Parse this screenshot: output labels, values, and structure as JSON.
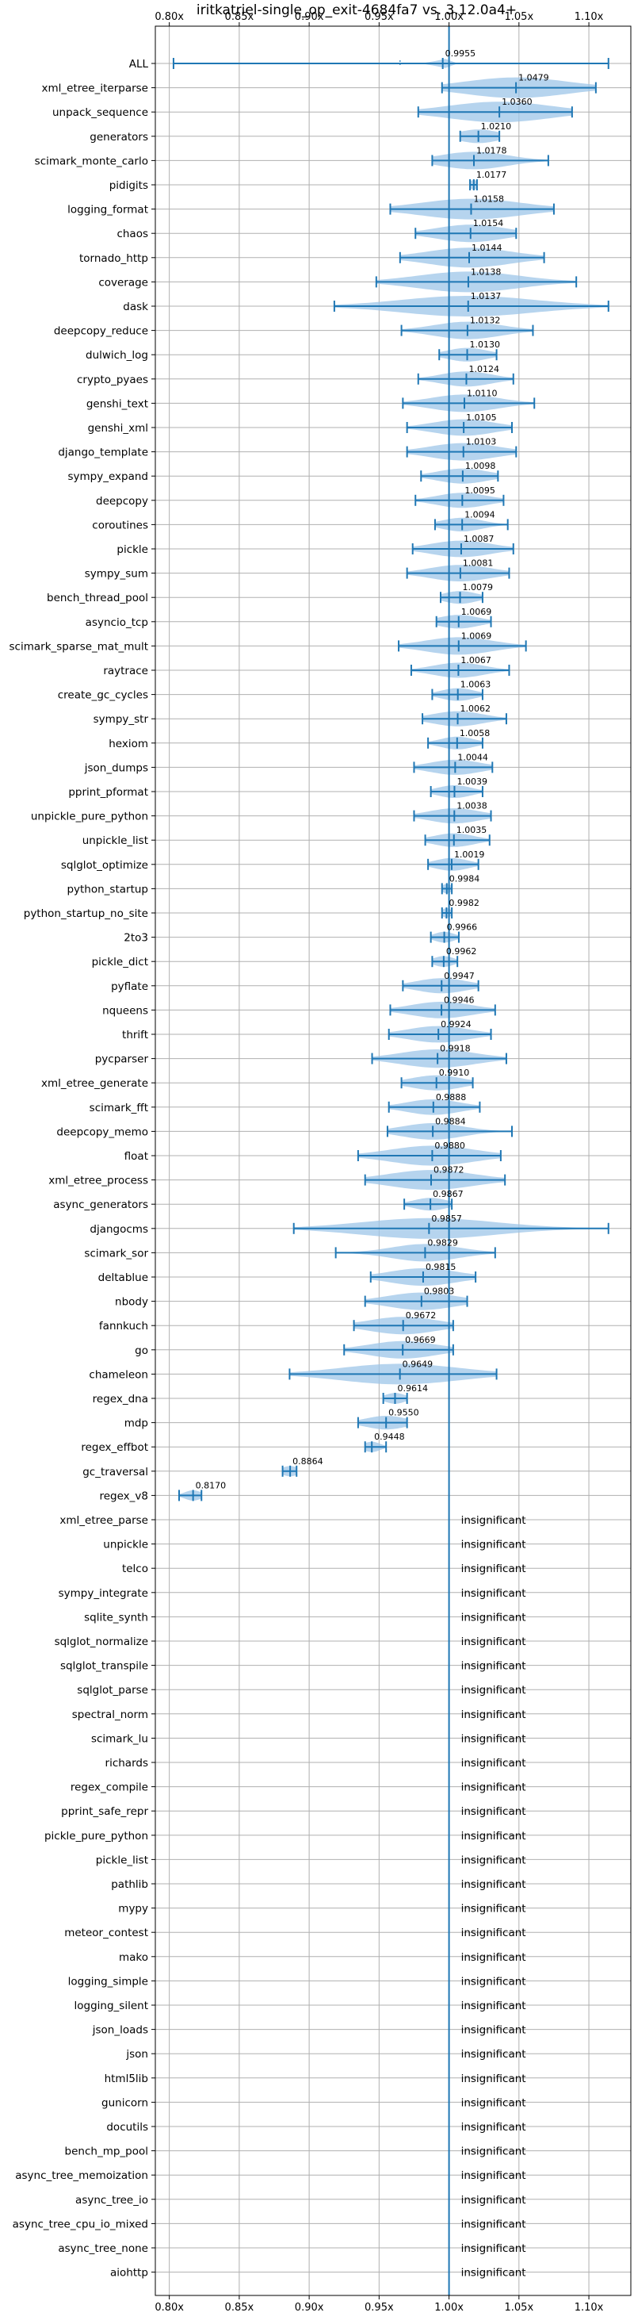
{
  "chart_data": {
    "type": "violin",
    "title": "iritkatriel-single_op_exit-4684fa7 vs. 3.12.0a4+",
    "xlim": [
      0.79,
      1.13
    ],
    "xticks": [
      {
        "value": 0.8,
        "label": "0.80x"
      },
      {
        "value": 0.85,
        "label": "0.85x"
      },
      {
        "value": 0.9,
        "label": "0.90x"
      },
      {
        "value": 0.95,
        "label": "0.95x"
      },
      {
        "value": 1.0,
        "label": "1.00x"
      },
      {
        "value": 1.05,
        "label": "1.05x"
      },
      {
        "value": 1.1,
        "label": "1.10x"
      }
    ],
    "reference_line": 1.0,
    "grid": true,
    "colors": {
      "violin": "#9ec5e8",
      "line": "#1f77b4",
      "grid": "#b0b0b0"
    },
    "insignificant_label": "insignificant",
    "benchmarks": [
      {
        "name": "ALL",
        "mean": 0.9955,
        "label": "0.9955",
        "min": 0.803,
        "max": 1.114,
        "spread": 0.004,
        "median": 0.965
      },
      {
        "name": "xml_etree_iterparse",
        "mean": 1.0479,
        "label": "1.0479",
        "min": 0.995,
        "max": 1.105,
        "spread": 0.03
      },
      {
        "name": "unpack_sequence",
        "mean": 1.036,
        "label": "1.0360",
        "min": 0.978,
        "max": 1.088,
        "spread": 0.03
      },
      {
        "name": "generators",
        "mean": 1.021,
        "label": "1.0210",
        "min": 1.008,
        "max": 1.036,
        "spread": 0.012
      },
      {
        "name": "scimark_monte_carlo",
        "mean": 1.0178,
        "label": "1.0178",
        "min": 0.988,
        "max": 1.071,
        "spread": 0.02
      },
      {
        "name": "pidigits",
        "mean": 1.0177,
        "label": "1.0177",
        "min": 1.015,
        "max": 1.02,
        "spread": 0.003
      },
      {
        "name": "logging_format",
        "mean": 1.0158,
        "label": "1.0158",
        "min": 0.958,
        "max": 1.075,
        "spread": 0.03
      },
      {
        "name": "chaos",
        "mean": 1.0154,
        "label": "1.0154",
        "min": 0.976,
        "max": 1.048,
        "spread": 0.02
      },
      {
        "name": "tornado_http",
        "mean": 1.0144,
        "label": "1.0144",
        "min": 0.965,
        "max": 1.068,
        "spread": 0.025
      },
      {
        "name": "coverage",
        "mean": 1.0138,
        "label": "1.0138",
        "min": 0.948,
        "max": 1.091,
        "spread": 0.03
      },
      {
        "name": "dask",
        "mean": 1.0137,
        "label": "1.0137",
        "min": 0.918,
        "max": 1.114,
        "spread": 0.04
      },
      {
        "name": "deepcopy_reduce",
        "mean": 1.0132,
        "label": "1.0132",
        "min": 0.966,
        "max": 1.06,
        "spread": 0.02
      },
      {
        "name": "dulwich_log",
        "mean": 1.013,
        "label": "1.0130",
        "min": 0.993,
        "max": 1.034,
        "spread": 0.012
      },
      {
        "name": "crypto_pyaes",
        "mean": 1.0124,
        "label": "1.0124",
        "min": 0.978,
        "max": 1.046,
        "spread": 0.015
      },
      {
        "name": "genshi_text",
        "mean": 1.011,
        "label": "1.0110",
        "min": 0.967,
        "max": 1.061,
        "spread": 0.02
      },
      {
        "name": "genshi_xml",
        "mean": 1.0105,
        "label": "1.0105",
        "min": 0.97,
        "max": 1.045,
        "spread": 0.018
      },
      {
        "name": "django_template",
        "mean": 1.0103,
        "label": "1.0103",
        "min": 0.97,
        "max": 1.048,
        "spread": 0.02
      },
      {
        "name": "sympy_expand",
        "mean": 1.0098,
        "label": "1.0098",
        "min": 0.98,
        "max": 1.035,
        "spread": 0.015
      },
      {
        "name": "deepcopy",
        "mean": 1.0095,
        "label": "1.0095",
        "min": 0.976,
        "max": 1.039,
        "spread": 0.015
      },
      {
        "name": "coroutines",
        "mean": 1.0094,
        "label": "1.0094",
        "min": 0.99,
        "max": 1.042,
        "spread": 0.012
      },
      {
        "name": "pickle",
        "mean": 1.0087,
        "label": "1.0087",
        "min": 0.974,
        "max": 1.046,
        "spread": 0.018
      },
      {
        "name": "sympy_sum",
        "mean": 1.0081,
        "label": "1.0081",
        "min": 0.97,
        "max": 1.043,
        "spread": 0.018
      },
      {
        "name": "bench_thread_pool",
        "mean": 1.0079,
        "label": "1.0079",
        "min": 0.994,
        "max": 1.024,
        "spread": 0.01
      },
      {
        "name": "asyncio_tcp",
        "mean": 1.0069,
        "label": "1.0069",
        "min": 0.991,
        "max": 1.03,
        "spread": 0.012
      },
      {
        "name": "scimark_sparse_mat_mult",
        "mean": 1.0069,
        "label": "1.0069",
        "min": 0.964,
        "max": 1.055,
        "spread": 0.02
      },
      {
        "name": "raytrace",
        "mean": 1.0067,
        "label": "1.0067",
        "min": 0.973,
        "max": 1.043,
        "spread": 0.015
      },
      {
        "name": "create_gc_cycles",
        "mean": 1.0063,
        "label": "1.0063",
        "min": 0.988,
        "max": 1.024,
        "spread": 0.01
      },
      {
        "name": "sympy_str",
        "mean": 1.0062,
        "label": "1.0062",
        "min": 0.981,
        "max": 1.041,
        "spread": 0.015
      },
      {
        "name": "hexiom",
        "mean": 1.0058,
        "label": "1.0058",
        "min": 0.985,
        "max": 1.024,
        "spread": 0.01
      },
      {
        "name": "json_dumps",
        "mean": 1.0044,
        "label": "1.0044",
        "min": 0.975,
        "max": 1.031,
        "spread": 0.015
      },
      {
        "name": "pprint_pformat",
        "mean": 1.0039,
        "label": "1.0039",
        "min": 0.987,
        "max": 1.024,
        "spread": 0.01
      },
      {
        "name": "unpickle_pure_python",
        "mean": 1.0038,
        "label": "1.0038",
        "min": 0.975,
        "max": 1.03,
        "spread": 0.015
      },
      {
        "name": "unpickle_list",
        "mean": 1.0035,
        "label": "1.0035",
        "min": 0.983,
        "max": 1.029,
        "spread": 0.012
      },
      {
        "name": "sqlglot_optimize",
        "mean": 1.0019,
        "label": "1.0019",
        "min": 0.985,
        "max": 1.021,
        "spread": 0.01
      },
      {
        "name": "python_startup",
        "mean": 0.9984,
        "label": "0.9984",
        "min": 0.995,
        "max": 1.002,
        "spread": 0.003
      },
      {
        "name": "python_startup_no_site",
        "mean": 0.9982,
        "label": "0.9982",
        "min": 0.995,
        "max": 1.002,
        "spread": 0.003
      },
      {
        "name": "2to3",
        "mean": 0.9966,
        "label": "0.9966",
        "min": 0.987,
        "max": 1.007,
        "spread": 0.006
      },
      {
        "name": "pickle_dict",
        "mean": 0.9962,
        "label": "0.9962",
        "min": 0.988,
        "max": 1.006,
        "spread": 0.006
      },
      {
        "name": "pyflate",
        "mean": 0.9947,
        "label": "0.9947",
        "min": 0.967,
        "max": 1.021,
        "spread": 0.015
      },
      {
        "name": "nqueens",
        "mean": 0.9946,
        "label": "0.9946",
        "min": 0.958,
        "max": 1.033,
        "spread": 0.018
      },
      {
        "name": "thrift",
        "mean": 0.9924,
        "label": "0.9924",
        "min": 0.957,
        "max": 1.03,
        "spread": 0.018
      },
      {
        "name": "pycparser",
        "mean": 0.9918,
        "label": "0.9918",
        "min": 0.945,
        "max": 1.041,
        "spread": 0.022
      },
      {
        "name": "xml_etree_generate",
        "mean": 0.991,
        "label": "0.9910",
        "min": 0.966,
        "max": 1.017,
        "spread": 0.015
      },
      {
        "name": "scimark_fft",
        "mean": 0.9888,
        "label": "0.9888",
        "min": 0.957,
        "max": 1.022,
        "spread": 0.016
      },
      {
        "name": "deepcopy_memo",
        "mean": 0.9884,
        "label": "0.9884",
        "min": 0.956,
        "max": 1.045,
        "spread": 0.018
      },
      {
        "name": "float",
        "mean": 0.988,
        "label": "0.9880",
        "min": 0.935,
        "max": 1.037,
        "spread": 0.025
      },
      {
        "name": "xml_etree_process",
        "mean": 0.9872,
        "label": "0.9872",
        "min": 0.94,
        "max": 1.04,
        "spread": 0.025
      },
      {
        "name": "async_generators",
        "mean": 0.9867,
        "label": "0.9867",
        "min": 0.968,
        "max": 1.002,
        "spread": 0.01
      },
      {
        "name": "djangocms",
        "mean": 0.9857,
        "label": "0.9857",
        "min": 0.889,
        "max": 1.114,
        "spread": 0.04
      },
      {
        "name": "scimark_sor",
        "mean": 0.9829,
        "label": "0.9829",
        "min": 0.919,
        "max": 1.033,
        "spread": 0.02
      },
      {
        "name": "deltablue",
        "mean": 0.9815,
        "label": "0.9815",
        "min": 0.944,
        "max": 1.019,
        "spread": 0.02
      },
      {
        "name": "nbody",
        "mean": 0.9803,
        "label": "0.9803",
        "min": 0.94,
        "max": 1.013,
        "spread": 0.02
      },
      {
        "name": "fannkuch",
        "mean": 0.9672,
        "label": "0.9672",
        "min": 0.932,
        "max": 1.003,
        "spread": 0.02
      },
      {
        "name": "go",
        "mean": 0.9669,
        "label": "0.9669",
        "min": 0.925,
        "max": 1.003,
        "spread": 0.02
      },
      {
        "name": "chameleon",
        "mean": 0.9649,
        "label": "0.9649",
        "min": 0.886,
        "max": 1.034,
        "spread": 0.035
      },
      {
        "name": "regex_dna",
        "mean": 0.9614,
        "label": "0.9614",
        "min": 0.953,
        "max": 0.97,
        "spread": 0.006
      },
      {
        "name": "mdp",
        "mean": 0.955,
        "label": "0.9550",
        "min": 0.935,
        "max": 0.97,
        "spread": 0.012
      },
      {
        "name": "regex_effbot",
        "mean": 0.9448,
        "label": "0.9448",
        "min": 0.94,
        "max": 0.955,
        "spread": 0.005
      },
      {
        "name": "gc_traversal",
        "mean": 0.8864,
        "label": "0.8864",
        "min": 0.881,
        "max": 0.891,
        "spread": 0.005
      },
      {
        "name": "regex_v8",
        "mean": 0.817,
        "label": "0.8170",
        "min": 0.807,
        "max": 0.823,
        "spread": 0.005
      },
      {
        "name": "xml_etree_parse",
        "insignificant": true
      },
      {
        "name": "unpickle",
        "insignificant": true
      },
      {
        "name": "telco",
        "insignificant": true
      },
      {
        "name": "sympy_integrate",
        "insignificant": true
      },
      {
        "name": "sqlite_synth",
        "insignificant": true
      },
      {
        "name": "sqlglot_normalize",
        "insignificant": true
      },
      {
        "name": "sqlglot_transpile",
        "insignificant": true
      },
      {
        "name": "sqlglot_parse",
        "insignificant": true
      },
      {
        "name": "spectral_norm",
        "insignificant": true
      },
      {
        "name": "scimark_lu",
        "insignificant": true
      },
      {
        "name": "richards",
        "insignificant": true
      },
      {
        "name": "regex_compile",
        "insignificant": true
      },
      {
        "name": "pprint_safe_repr",
        "insignificant": true
      },
      {
        "name": "pickle_pure_python",
        "insignificant": true
      },
      {
        "name": "pickle_list",
        "insignificant": true
      },
      {
        "name": "pathlib",
        "insignificant": true
      },
      {
        "name": "mypy",
        "insignificant": true
      },
      {
        "name": "meteor_contest",
        "insignificant": true
      },
      {
        "name": "mako",
        "insignificant": true
      },
      {
        "name": "logging_simple",
        "insignificant": true
      },
      {
        "name": "logging_silent",
        "insignificant": true
      },
      {
        "name": "json_loads",
        "insignificant": true
      },
      {
        "name": "json",
        "insignificant": true
      },
      {
        "name": "html5lib",
        "insignificant": true
      },
      {
        "name": "gunicorn",
        "insignificant": true
      },
      {
        "name": "docutils",
        "insignificant": true
      },
      {
        "name": "bench_mp_pool",
        "insignificant": true
      },
      {
        "name": "async_tree_memoization",
        "insignificant": true
      },
      {
        "name": "async_tree_io",
        "insignificant": true
      },
      {
        "name": "async_tree_cpu_io_mixed",
        "insignificant": true
      },
      {
        "name": "async_tree_none",
        "insignificant": true
      },
      {
        "name": "aiohttp",
        "insignificant": true
      }
    ]
  }
}
